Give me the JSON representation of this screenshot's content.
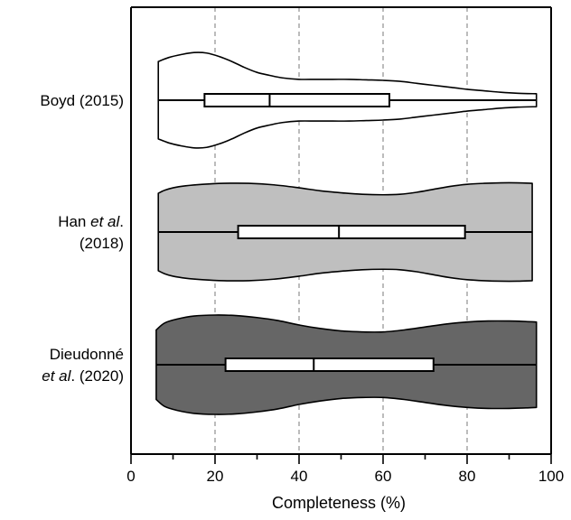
{
  "chart_data": {
    "type": "violin",
    "title": "",
    "xlabel": "Completeness (%)",
    "ylabel": "",
    "xlim": [
      0,
      100
    ],
    "xticks": [
      0,
      20,
      40,
      60,
      80,
      100
    ],
    "xtick_labels": [
      "0",
      "20",
      "40",
      "60",
      "80",
      "100"
    ],
    "grid": "vertical dashed at 20, 40, 60, 80",
    "legend": "none",
    "categories": [
      {
        "line1": "Boyd (2015)",
        "line2": ""
      },
      {
        "line1": "Han et al.",
        "line2": "(2018)"
      },
      {
        "line1": "Dieudonné",
        "line2": "et al. (2020)"
      }
    ],
    "series": [
      {
        "fill": "#ffffff",
        "min": 6.5,
        "q1": 17.5,
        "median": 33,
        "q3": 61.5,
        "max": 96.5,
        "density": [
          [
            6.5,
            0.78
          ],
          [
            9,
            0.86
          ],
          [
            12,
            0.92
          ],
          [
            15,
            0.96
          ],
          [
            18,
            0.95
          ],
          [
            21,
            0.88
          ],
          [
            24,
            0.78
          ],
          [
            27,
            0.66
          ],
          [
            30,
            0.56
          ],
          [
            33,
            0.5
          ],
          [
            36,
            0.45
          ],
          [
            40,
            0.42
          ],
          [
            44,
            0.42
          ],
          [
            48,
            0.42
          ],
          [
            52,
            0.42
          ],
          [
            56,
            0.41
          ],
          [
            60,
            0.4
          ],
          [
            64,
            0.38
          ],
          [
            68,
            0.34
          ],
          [
            72,
            0.3
          ],
          [
            76,
            0.26
          ],
          [
            80,
            0.22
          ],
          [
            84,
            0.19
          ],
          [
            88,
            0.16
          ],
          [
            92,
            0.14
          ],
          [
            96.5,
            0.13
          ]
        ]
      },
      {
        "fill": "#bfbfbf",
        "min": 6.5,
        "q1": 25.5,
        "median": 49.5,
        "q3": 79.5,
        "max": 95.5,
        "density": [
          [
            6.5,
            0.78
          ],
          [
            8,
            0.84
          ],
          [
            10,
            0.89
          ],
          [
            13,
            0.93
          ],
          [
            17,
            0.96
          ],
          [
            22,
            0.98
          ],
          [
            28,
            0.98
          ],
          [
            34,
            0.95
          ],
          [
            40,
            0.89
          ],
          [
            45,
            0.83
          ],
          [
            50,
            0.79
          ],
          [
            55,
            0.76
          ],
          [
            60,
            0.75
          ],
          [
            64,
            0.76
          ],
          [
            68,
            0.8
          ],
          [
            72,
            0.86
          ],
          [
            76,
            0.92
          ],
          [
            80,
            0.96
          ],
          [
            84,
            0.98
          ],
          [
            88,
            0.99
          ],
          [
            92,
            0.99
          ],
          [
            95.5,
            0.98
          ]
        ]
      },
      {
        "fill": "#666666",
        "min": 6,
        "q1": 22.5,
        "median": 43.5,
        "q3": 72,
        "max": 96.5,
        "density": [
          [
            6,
            0.7
          ],
          [
            8,
            0.84
          ],
          [
            11,
            0.92
          ],
          [
            15,
            0.98
          ],
          [
            20,
            1.0
          ],
          [
            25,
            0.99
          ],
          [
            30,
            0.95
          ],
          [
            35,
            0.89
          ],
          [
            40,
            0.8
          ],
          [
            45,
            0.73
          ],
          [
            50,
            0.68
          ],
          [
            55,
            0.66
          ],
          [
            60,
            0.66
          ],
          [
            65,
            0.7
          ],
          [
            70,
            0.76
          ],
          [
            75,
            0.82
          ],
          [
            80,
            0.86
          ],
          [
            85,
            0.88
          ],
          [
            90,
            0.88
          ],
          [
            94,
            0.87
          ],
          [
            96.5,
            0.86
          ]
        ]
      }
    ]
  }
}
